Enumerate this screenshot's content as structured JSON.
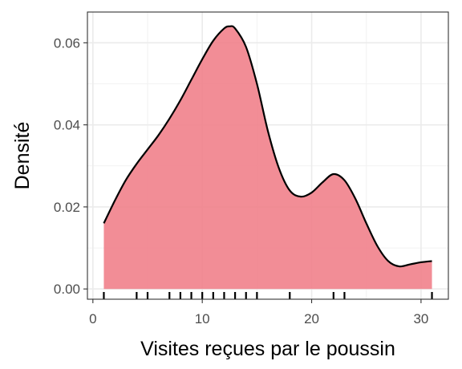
{
  "chart_data": {
    "type": "area",
    "title": "",
    "xlabel": "Visites reçues par le poussin",
    "ylabel": "Densité",
    "xlim": [
      -0.5,
      32.5
    ],
    "ylim": [
      -0.0025,
      0.0675
    ],
    "x_ticks": [
      0,
      10,
      20,
      30
    ],
    "y_ticks": [
      0.0,
      0.02,
      0.04,
      0.06
    ],
    "x_tick_labels": [
      "0",
      "10",
      "20",
      "30"
    ],
    "y_tick_labels": [
      "0.00",
      "0.02",
      "0.04",
      "0.06"
    ],
    "grid": true,
    "legend": "none",
    "fill_color": "#f07d87",
    "line_color": "#000000",
    "density": {
      "x": [
        1,
        2,
        3,
        4,
        5,
        6,
        7,
        8,
        9,
        10,
        11,
        12,
        12.5,
        13,
        14,
        15,
        16,
        17,
        18,
        19,
        20,
        21,
        22,
        23,
        24,
        25,
        26,
        27,
        28,
        29,
        30,
        31
      ],
      "y": [
        0.016,
        0.0215,
        0.0265,
        0.0305,
        0.034,
        0.0375,
        0.0415,
        0.046,
        0.051,
        0.056,
        0.0605,
        0.0635,
        0.064,
        0.0635,
        0.059,
        0.05,
        0.0385,
        0.0295,
        0.024,
        0.0225,
        0.0235,
        0.026,
        0.028,
        0.0265,
        0.022,
        0.016,
        0.0105,
        0.0068,
        0.0055,
        0.006,
        0.0065,
        0.0068
      ]
    },
    "rug": [
      1,
      4,
      5,
      7,
      8,
      9,
      10,
      11,
      12,
      13,
      14,
      15,
      18,
      22,
      23,
      31
    ]
  }
}
